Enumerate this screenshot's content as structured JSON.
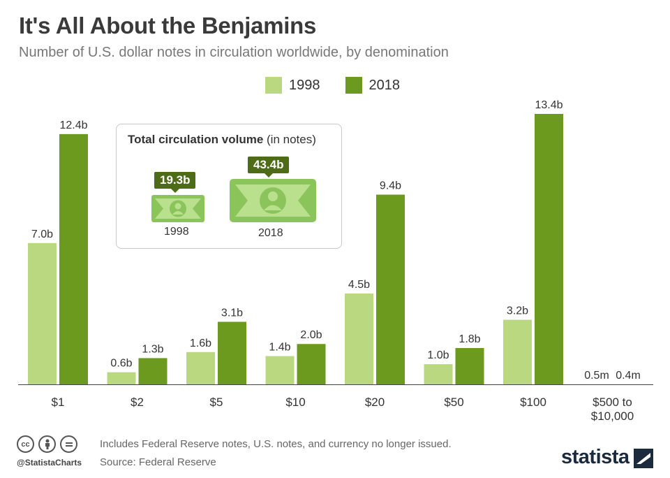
{
  "header": {
    "title": "It's All About the Benjamins",
    "subtitle": "Number of U.S. dollar notes in circulation worldwide, by denomination"
  },
  "legend": [
    {
      "label": "1998",
      "color": "#b9d87f"
    },
    {
      "label": "2018",
      "color": "#6b9a1f"
    }
  ],
  "inset": {
    "title_bold": "Total circulation volume",
    "title_rest": " (in notes)",
    "items": [
      {
        "year": "1998",
        "value": "19.3b"
      },
      {
        "year": "2018",
        "value": "43.4b"
      }
    ]
  },
  "chart_data": {
    "type": "bar",
    "categories": [
      "$1",
      "$2",
      "$5",
      "$10",
      "$20",
      "$50",
      "$100",
      "$500 to\n$10,000"
    ],
    "series": [
      {
        "name": "1998",
        "color": "#b9d87f",
        "values": [
          7.0,
          0.6,
          1.6,
          1.4,
          4.5,
          1.0,
          3.2,
          0.0005
        ],
        "labels": [
          "7.0b",
          "0.6b",
          "1.6b",
          "1.4b",
          "4.5b",
          "1.0b",
          "3.2b",
          "0.5m"
        ]
      },
      {
        "name": "2018",
        "color": "#6b9a1f",
        "values": [
          12.4,
          1.3,
          3.1,
          2.0,
          9.4,
          1.8,
          13.4,
          0.0004
        ],
        "labels": [
          "12.4b",
          "1.3b",
          "3.1b",
          "2.0b",
          "9.4b",
          "1.8b",
          "13.4b",
          "0.4m"
        ]
      }
    ],
    "ylim": [
      0,
      13.4
    ],
    "grid": false,
    "legend": "top-center"
  },
  "footer": {
    "note": "Includes Federal Reserve notes, U.S. notes, and currency no longer issued.",
    "source": "Source: Federal Reserve",
    "handle": "@StatistaCharts",
    "brand": "statista",
    "cc_icons": [
      "cc-icon",
      "attribution-icon",
      "no-derivatives-icon"
    ]
  }
}
